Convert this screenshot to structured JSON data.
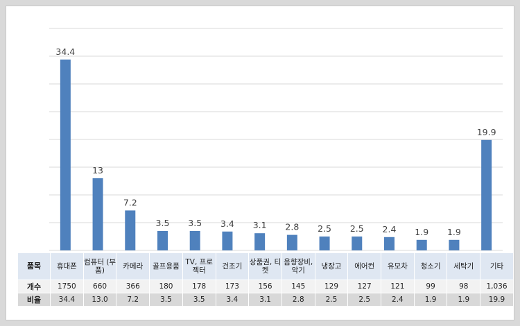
{
  "chart_data": {
    "type": "bar",
    "categories": [
      "휴대폰",
      "컴퓨터 (부품)",
      "카메라",
      "골프용품",
      "TV, 프로젝터",
      "건조기",
      "상품권, 티켓",
      "음향장비, 악기",
      "냉장고",
      "에어컨",
      "유모차",
      "청소기",
      "세탁기",
      "기타"
    ],
    "series": [
      {
        "values": [
          34.4,
          13.0,
          7.2,
          3.5,
          3.5,
          3.4,
          3.1,
          2.8,
          2.5,
          2.5,
          2.4,
          1.9,
          1.9,
          19.9
        ]
      }
    ],
    "data_labels": [
      "34.4",
      "13",
      "7.2",
      "3.5",
      "3.5",
      "3.4",
      "3.1",
      "2.8",
      "2.5",
      "2.5",
      "2.4",
      "1.9",
      "1.9",
      "19.9"
    ],
    "ylim": [
      0,
      40
    ],
    "grid": true,
    "bar_color": "#4f81bd",
    "table": {
      "row_headers": [
        "품목",
        "개수",
        "비율"
      ],
      "counts": [
        "1750",
        "660",
        "366",
        "180",
        "178",
        "173",
        "156",
        "145",
        "129",
        "127",
        "121",
        "99",
        "98",
        "1,036"
      ],
      "ratios": [
        "34.4",
        "13.0",
        "7.2",
        "3.5",
        "3.5",
        "3.4",
        "3.1",
        "2.8",
        "2.5",
        "2.5",
        "2.4",
        "1.9",
        "1.9",
        "19.9"
      ]
    }
  }
}
